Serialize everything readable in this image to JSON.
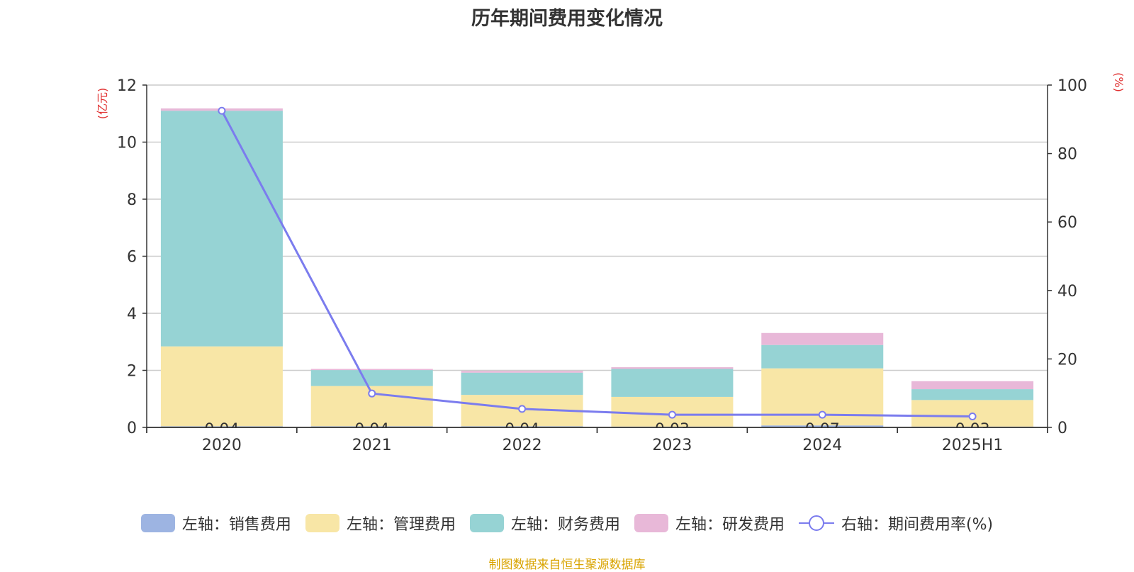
{
  "title": "历年期间费用变化情况",
  "source": "制图数据来自恒生聚源数据库",
  "chart_data": {
    "type": "bar",
    "stacked": true,
    "title": "历年期间费用变化情况",
    "categories": [
      "2020",
      "2021",
      "2022",
      "2023",
      "2024",
      "2025H1"
    ],
    "series": [
      {
        "name": "左轴：销售费用",
        "axis": "left",
        "color": "#9db4e2",
        "values": [
          0.04,
          0.04,
          0.04,
          0.03,
          0.07,
          0.03
        ]
      },
      {
        "name": "左轴：管理费用",
        "axis": "left",
        "color": "#f8e6a6",
        "values": [
          2.8,
          1.41,
          1.1,
          1.04,
          2.0,
          0.93
        ]
      },
      {
        "name": "左轴：财务费用",
        "axis": "left",
        "color": "#96d3d4",
        "values": [
          8.26,
          0.56,
          0.78,
          0.98,
          0.82,
          0.38
        ]
      },
      {
        "name": "左轴：研发费用",
        "axis": "left",
        "color": "#e8b8d8",
        "values": [
          0.08,
          0.04,
          0.06,
          0.06,
          0.42,
          0.28
        ]
      }
    ],
    "line_series": {
      "name": "右轴：期间费用率(%)",
      "axis": "right",
      "color": "#7b7cee",
      "values": [
        92.5,
        9.9,
        5.4,
        3.7,
        3.7,
        3.2
      ]
    },
    "bottom_labels": [
      "0.04",
      "0.04",
      "0.04",
      "0.03",
      "0.07",
      "0.03"
    ],
    "ylabel_left": "(亿元)",
    "ylabel_right": "(%)",
    "ylim_left": [
      0,
      12
    ],
    "ylim_right": [
      0,
      100
    ],
    "yticks_left": [
      "0",
      "2",
      "4",
      "6",
      "8",
      "10",
      "12"
    ],
    "yticks_right": [
      "0",
      "20",
      "40",
      "60",
      "80",
      "100"
    ],
    "grid": true,
    "legend_position": "bottom"
  }
}
